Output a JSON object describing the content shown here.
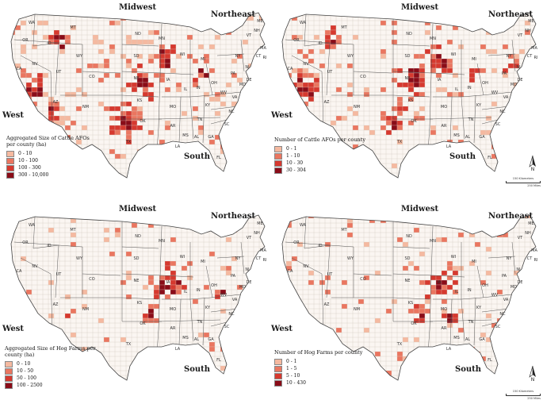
{
  "colors": {
    "c1": "#f5b9a0",
    "c2": "#ea7660",
    "c3": "#d6392f",
    "c4": "#8a0c18",
    "land": "#fbf6f2",
    "county_border": "#d8d0c8",
    "state_border": "#555555"
  },
  "regions": {
    "midwest": "Midwest",
    "northeast": "Northeast",
    "west": "West",
    "south": "South"
  },
  "state_labels": [
    "WA",
    "OR",
    "CA",
    "ID",
    "NV",
    "MT",
    "WY",
    "UT",
    "AZ",
    "CO",
    "NM",
    "ND",
    "SD",
    "NE",
    "KS",
    "OK",
    "TX",
    "MN",
    "IA",
    "MO",
    "AR",
    "LA",
    "WI",
    "IL",
    "MI",
    "IN",
    "OH",
    "KY",
    "TN",
    "MS",
    "AL",
    "GA",
    "FL",
    "SC",
    "NC",
    "VA",
    "WV",
    "PA",
    "NY",
    "VT",
    "NH",
    "ME",
    "MA",
    "CT",
    "NJ",
    "DE",
    "MD",
    "RI"
  ],
  "panels": [
    {
      "id": "cattle-size",
      "legend_title": "Aggregated Size of Cattle AFOs per county (ha)",
      "legend": [
        "0 - 10",
        "10 - 100",
        "100 - 300",
        "300 - 10,000"
      ],
      "density": 0.55,
      "show_compass": false
    },
    {
      "id": "cattle-number",
      "legend_title": "Number of Cattle AFOs per county",
      "legend": [
        "0 - 1",
        "1 - 10",
        "10 - 30",
        "30 - 304"
      ],
      "density": 0.5,
      "show_compass": true
    },
    {
      "id": "hog-size",
      "legend_title": "Aggregated Size of Hog Farms per county (ha)",
      "legend": [
        "0 - 10",
        "10 - 50",
        "50 - 100",
        "100 - 2500"
      ],
      "density": 0.3,
      "show_compass": false
    },
    {
      "id": "hog-number",
      "legend_title": "Number of  Hog Farms per county",
      "legend": [
        "0 - 1",
        "1 - 5",
        "5 - 10",
        "10 - 430"
      ],
      "density": 0.28,
      "show_compass": true
    }
  ],
  "compass": {
    "letter": "N",
    "scale_km": "150 Kilometers",
    "scale_mi": "250 Miles"
  }
}
